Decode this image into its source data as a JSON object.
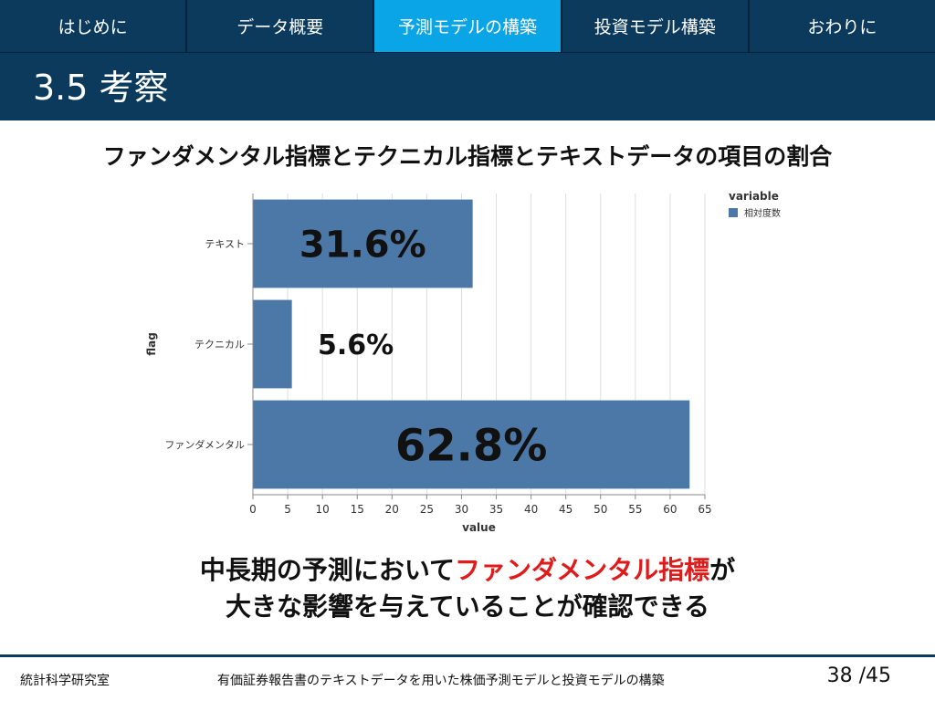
{
  "nav": {
    "tabs": [
      {
        "label": "はじめに",
        "active": false
      },
      {
        "label": "データ概要",
        "active": false
      },
      {
        "label": "予測モデルの構築",
        "active": true
      },
      {
        "label": "投資モデル構築",
        "active": false
      },
      {
        "label": "おわりに",
        "active": false
      }
    ]
  },
  "slide": {
    "title": "3.5 考察",
    "heading": "ファンダメンタル指標とテクニカル指標とテキストデータの項目の割合"
  },
  "chart_data": {
    "type": "bar",
    "orientation": "horizontal",
    "categories": [
      "テキスト",
      "テクニカル",
      "ファンダメンタル"
    ],
    "values": [
      31.6,
      5.6,
      62.8
    ],
    "data_labels": [
      "31.6%",
      "5.6%",
      "62.8%"
    ],
    "xlabel": "value",
    "ylabel": "flag",
    "xlim": [
      0,
      65
    ],
    "x_ticks": [
      0,
      5,
      10,
      15,
      20,
      25,
      30,
      35,
      40,
      45,
      50,
      55,
      60,
      65
    ],
    "legend_title": "variable",
    "series": [
      {
        "name": "相対度数",
        "values": [
          31.6,
          5.6,
          62.8
        ]
      }
    ],
    "legend_position": "top-right",
    "grid": true,
    "bar_color": "#4c78a8"
  },
  "conclusion": {
    "line1_a": "中長期の予測において",
    "line1_highlight": "ファンダメンタル指標",
    "line1_b": "が",
    "line2": "大きな影響を与えていることが確認できる"
  },
  "footer": {
    "lab": "統計科学研究室",
    "subtitle": "有価証券報告書のテキストデータを用いた株価予測モデルと投資モデルの構築",
    "page": "38 /45"
  },
  "colors": {
    "header_bg": "#0b3a5c",
    "active_tab": "#0aa5e6",
    "highlight": "#e01b1b"
  }
}
